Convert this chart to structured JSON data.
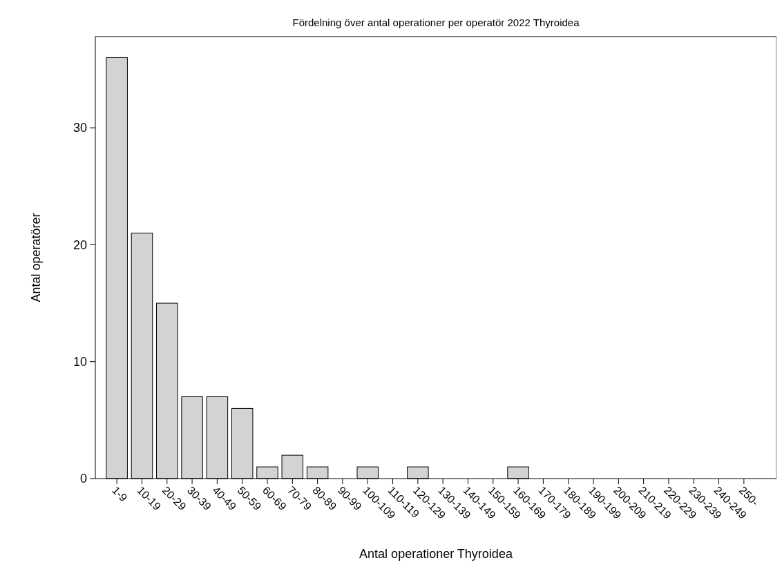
{
  "chart_data": {
    "type": "bar",
    "title": "Fördelning över antal operationer per operatör 2022 Thyroidea",
    "xlabel": "Antal operationer Thyroidea",
    "ylabel": "Antal operatörer",
    "categories": [
      "1-9",
      "10-19",
      "20-29",
      "30-39",
      "40-49",
      "50-59",
      "60-69",
      "70-79",
      "80-89",
      "90-99",
      "100-109",
      "110-119",
      "120-129",
      "130-139",
      "140-149",
      "150-159",
      "160-169",
      "170-179",
      "180-189",
      "190-199",
      "200-209",
      "210-219",
      "220-229",
      "230-239",
      "240-249",
      "250-"
    ],
    "values": [
      36,
      21,
      15,
      7,
      7,
      6,
      1,
      2,
      1,
      0,
      1,
      0,
      1,
      0,
      0,
      0,
      1,
      0,
      0,
      0,
      0,
      0,
      0,
      0,
      0,
      0
    ],
    "color": "#d3d3d3",
    "ylim": [
      0,
      37.8
    ],
    "yticks": [
      0,
      10,
      20,
      30
    ],
    "grid": false
  }
}
